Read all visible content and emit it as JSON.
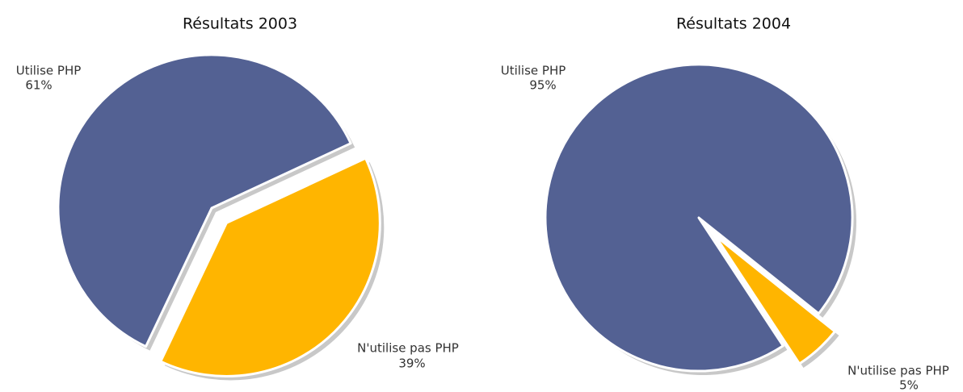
{
  "chart_data": [
    {
      "type": "pie",
      "title": "Résultats 2003",
      "categories": [
        "Utilise PHP",
        "N'utilise pas PHP"
      ],
      "values": [
        61,
        39
      ],
      "value_labels": [
        "61%",
        "39%"
      ],
      "colors": [
        "#536193",
        "#ffb500"
      ]
    },
    {
      "type": "pie",
      "title": "Résultats 2004",
      "categories": [
        "Utilise PHP",
        "N'utilise pas PHP"
      ],
      "values": [
        95,
        5
      ],
      "value_labels": [
        "95%",
        "5%"
      ],
      "colors": [
        "#536193",
        "#ffb500"
      ]
    }
  ]
}
